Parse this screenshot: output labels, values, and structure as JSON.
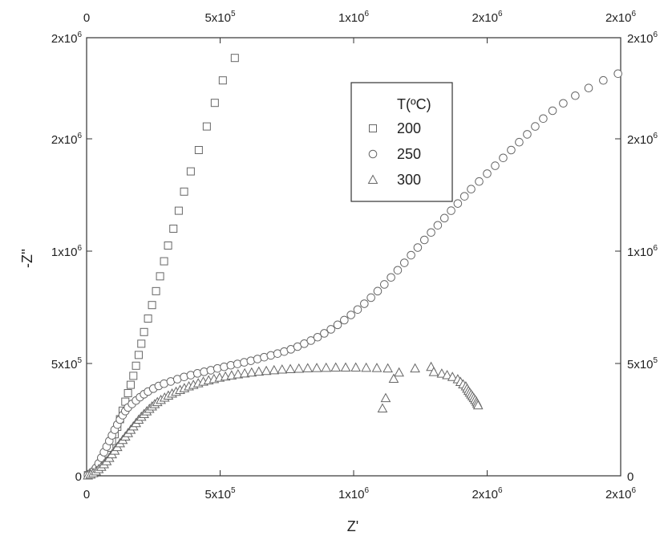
{
  "chart_data": {
    "type": "scatter",
    "xlabel": "Z'",
    "ylabel": "-Z''",
    "xlim": [
      0,
      2000000
    ],
    "ylim": [
      0,
      1950000
    ],
    "x_ticks": [
      {
        "value": 0,
        "label": "0"
      },
      {
        "value": 500000,
        "label": "5x10",
        "exp": "5"
      },
      {
        "value": 1000000,
        "label": "1x10",
        "exp": "6"
      },
      {
        "value": 1500000,
        "label": "2x10",
        "exp": "6"
      },
      {
        "value": 2000000,
        "label": "2x10",
        "exp": "6"
      }
    ],
    "y_ticks": [
      {
        "value": 0,
        "label": "0"
      },
      {
        "value": 500000,
        "label": "5x10",
        "exp": "5"
      },
      {
        "value": 1000000,
        "label": "1x10",
        "exp": "6"
      },
      {
        "value": 1500000,
        "label": "2x10",
        "exp": "6"
      },
      {
        "value": 1950000,
        "label": "2x10",
        "exp": "6"
      }
    ],
    "legend": {
      "title": "T(ºC)",
      "position": "top-center",
      "entries": [
        "200",
        "250",
        "300"
      ]
    },
    "series": [
      {
        "name": "200",
        "marker": "square",
        "points": [
          [
            5000,
            3000
          ],
          [
            15000,
            8000
          ],
          [
            25000,
            15000
          ],
          [
            35000,
            25000
          ],
          [
            45000,
            38000
          ],
          [
            55000,
            55000
          ],
          [
            65000,
            75000
          ],
          [
            75000,
            98000
          ],
          [
            85000,
            125000
          ],
          [
            95000,
            155000
          ],
          [
            105000,
            185000
          ],
          [
            115000,
            218000
          ],
          [
            125000,
            252000
          ],
          [
            135000,
            290000
          ],
          [
            145000,
            330000
          ],
          [
            155000,
            368000
          ],
          [
            165000,
            405000
          ],
          [
            175000,
            445000
          ],
          [
            185000,
            490000
          ],
          [
            195000,
            538000
          ],
          [
            205000,
            588000
          ],
          [
            215000,
            640000
          ],
          [
            230000,
            700000
          ],
          [
            245000,
            760000
          ],
          [
            260000,
            822000
          ],
          [
            275000,
            888000
          ],
          [
            290000,
            955000
          ],
          [
            305000,
            1025000
          ],
          [
            325000,
            1100000
          ],
          [
            345000,
            1180000
          ],
          [
            365000,
            1265000
          ],
          [
            390000,
            1355000
          ],
          [
            420000,
            1450000
          ],
          [
            450000,
            1555000
          ],
          [
            480000,
            1660000
          ],
          [
            510000,
            1760000
          ],
          [
            555000,
            1860000
          ]
        ]
      },
      {
        "name": "250",
        "marker": "circle",
        "points": [
          [
            5000,
            3000
          ],
          [
            15000,
            10000
          ],
          [
            25000,
            20000
          ],
          [
            35000,
            35000
          ],
          [
            45000,
            55000
          ],
          [
            55000,
            80000
          ],
          [
            65000,
            105000
          ],
          [
            75000,
            130000
          ],
          [
            85000,
            155000
          ],
          [
            95000,
            180000
          ],
          [
            105000,
            205000
          ],
          [
            115000,
            228000
          ],
          [
            125000,
            250000
          ],
          [
            135000,
            270000
          ],
          [
            145000,
            288000
          ],
          [
            155000,
            304000
          ],
          [
            170000,
            320000
          ],
          [
            185000,
            335000
          ],
          [
            200000,
            350000
          ],
          [
            215000,
            363000
          ],
          [
            230000,
            375000
          ],
          [
            250000,
            388000
          ],
          [
            270000,
            400000
          ],
          [
            290000,
            410000
          ],
          [
            315000,
            420000
          ],
          [
            340000,
            430000
          ],
          [
            365000,
            440000
          ],
          [
            390000,
            448000
          ],
          [
            415000,
            456000
          ],
          [
            440000,
            463000
          ],
          [
            465000,
            470000
          ],
          [
            490000,
            478000
          ],
          [
            515000,
            485000
          ],
          [
            540000,
            492000
          ],
          [
            565000,
            498000
          ],
          [
            590000,
            505000
          ],
          [
            615000,
            512000
          ],
          [
            640000,
            520000
          ],
          [
            665000,
            528000
          ],
          [
            690000,
            536000
          ],
          [
            715000,
            544000
          ],
          [
            740000,
            553000
          ],
          [
            765000,
            563000
          ],
          [
            790000,
            575000
          ],
          [
            815000,
            588000
          ],
          [
            840000,
            602000
          ],
          [
            865000,
            617000
          ],
          [
            890000,
            634000
          ],
          [
            915000,
            652000
          ],
          [
            940000,
            672000
          ],
          [
            965000,
            693000
          ],
          [
            990000,
            716000
          ],
          [
            1015000,
            740000
          ],
          [
            1040000,
            766000
          ],
          [
            1065000,
            793000
          ],
          [
            1090000,
            822000
          ],
          [
            1115000,
            852000
          ],
          [
            1140000,
            883000
          ],
          [
            1165000,
            915000
          ],
          [
            1190000,
            948000
          ],
          [
            1215000,
            982000
          ],
          [
            1240000,
            1016000
          ],
          [
            1265000,
            1050000
          ],
          [
            1290000,
            1083000
          ],
          [
            1315000,
            1115000
          ],
          [
            1340000,
            1147000
          ],
          [
            1365000,
            1180000
          ],
          [
            1390000,
            1212000
          ],
          [
            1415000,
            1244000
          ],
          [
            1440000,
            1276000
          ],
          [
            1470000,
            1310000
          ],
          [
            1500000,
            1345000
          ],
          [
            1530000,
            1380000
          ],
          [
            1560000,
            1415000
          ],
          [
            1590000,
            1450000
          ],
          [
            1620000,
            1485000
          ],
          [
            1650000,
            1520000
          ],
          [
            1680000,
            1555000
          ],
          [
            1710000,
            1590000
          ],
          [
            1745000,
            1625000
          ],
          [
            1785000,
            1658000
          ],
          [
            1830000,
            1692000
          ],
          [
            1880000,
            1726000
          ],
          [
            1935000,
            1760000
          ],
          [
            1990000,
            1790000
          ]
        ]
      },
      {
        "name": "300",
        "marker": "triangle",
        "points": [
          [
            5000,
            2000
          ],
          [
            15000,
            6000
          ],
          [
            25000,
            12000
          ],
          [
            35000,
            20000
          ],
          [
            45000,
            30000
          ],
          [
            55000,
            40000
          ],
          [
            65000,
            52000
          ],
          [
            75000,
            65000
          ],
          [
            85000,
            80000
          ],
          [
            95000,
            96000
          ],
          [
            105000,
            112000
          ],
          [
            115000,
            128000
          ],
          [
            125000,
            145000
          ],
          [
            135000,
            160000
          ],
          [
            145000,
            175000
          ],
          [
            155000,
            190000
          ],
          [
            165000,
            205000
          ],
          [
            175000,
            220000
          ],
          [
            185000,
            235000
          ],
          [
            195000,
            250000
          ],
          [
            205000,
            263000
          ],
          [
            215000,
            275000
          ],
          [
            225000,
            287000
          ],
          [
            235000,
            298000
          ],
          [
            245000,
            309000
          ],
          [
            255000,
            319000
          ],
          [
            265000,
            328000
          ],
          [
            278000,
            338000
          ],
          [
            292000,
            348000
          ],
          [
            306000,
            357000
          ],
          [
            320000,
            366000
          ],
          [
            335000,
            374000
          ],
          [
            350000,
            382000
          ],
          [
            366000,
            390000
          ],
          [
            383000,
            398000
          ],
          [
            400000,
            405000
          ],
          [
            418000,
            412000
          ],
          [
            437000,
            419000
          ],
          [
            457000,
            425000
          ],
          [
            477000,
            431000
          ],
          [
            498000,
            437000
          ],
          [
            520000,
            442000
          ],
          [
            543000,
            447000
          ],
          [
            567000,
            452000
          ],
          [
            592000,
            456000
          ],
          [
            618000,
            460000
          ],
          [
            645000,
            464000
          ],
          [
            673000,
            467000
          ],
          [
            702000,
            470000
          ],
          [
            732000,
            473000
          ],
          [
            763000,
            475000
          ],
          [
            795000,
            477000
          ],
          [
            828000,
            479000
          ],
          [
            862000,
            480000
          ],
          [
            897000,
            481000
          ],
          [
            933000,
            482000
          ],
          [
            970000,
            482000
          ],
          [
            1008000,
            482000
          ],
          [
            1047000,
            481000
          ],
          [
            1087000,
            480000
          ],
          [
            1128000,
            478000
          ],
          [
            1150000,
            432000
          ],
          [
            1170000,
            460000
          ],
          [
            1230000,
            478000
          ],
          [
            1290000,
            485000
          ],
          [
            1300000,
            462000
          ],
          [
            1330000,
            455000
          ],
          [
            1350000,
            448000
          ],
          [
            1370000,
            440000
          ],
          [
            1390000,
            430000
          ],
          [
            1400000,
            418000
          ],
          [
            1410000,
            407000
          ],
          [
            1420000,
            398000
          ],
          [
            1425000,
            388000
          ],
          [
            1430000,
            378000
          ],
          [
            1435000,
            370000
          ],
          [
            1440000,
            362000
          ],
          [
            1445000,
            354000
          ],
          [
            1450000,
            346000
          ],
          [
            1455000,
            338000
          ],
          [
            1460000,
            330000
          ],
          [
            1463000,
            322000
          ],
          [
            1466000,
            314000
          ],
          [
            1120000,
            346000
          ],
          [
            1108000,
            300000
          ]
        ]
      }
    ]
  }
}
